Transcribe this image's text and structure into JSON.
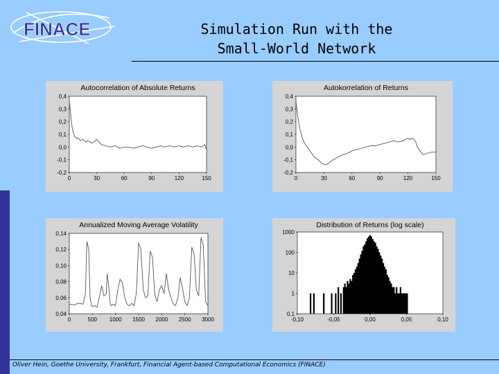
{
  "header": {
    "logo_text": "FINACE",
    "title_line1": "Simulation Run with the",
    "title_line2": "Small-World Network"
  },
  "footer": {
    "text": "Oliver Hein, Goethe University, Frankfurt, Financial Agent-based Computational Economics (FINACE)"
  },
  "colors": {
    "background": "#99ccff",
    "accent_bar": "#333399",
    "panel": "#d4d4d4",
    "plot_area": "#ffffff",
    "line": "#555555"
  },
  "chart_data": [
    {
      "type": "line",
      "title": "Autocorrelation of Absolute Returns",
      "xlim": [
        0,
        150
      ],
      "ylim": [
        -0.2,
        0.4
      ],
      "xticks": [
        "0",
        "30",
        "60",
        "90",
        "120",
        "150"
      ],
      "yticks": [
        "0,4",
        "0,3",
        "0,2",
        "0,1",
        "0,0",
        "-0,1",
        "-0,2"
      ],
      "x": [
        0,
        1,
        2,
        3,
        4,
        5,
        6,
        8,
        10,
        12,
        15,
        18,
        20,
        25,
        30,
        35,
        40,
        45,
        50,
        55,
        60,
        65,
        70,
        75,
        80,
        85,
        90,
        95,
        100,
        105,
        110,
        115,
        120,
        125,
        130,
        135,
        140,
        145,
        148,
        150
      ],
      "y": [
        0.36,
        0.3,
        0.22,
        0.16,
        0.12,
        0.1,
        0.08,
        0.07,
        0.07,
        0.05,
        0.06,
        0.04,
        0.05,
        0.03,
        0.06,
        0.02,
        0.01,
        0.0,
        0.01,
        -0.01,
        0.0,
        0.0,
        -0.01,
        0.0,
        0.01,
        0.0,
        -0.01,
        0.0,
        0.01,
        0.0,
        0.01,
        0.0,
        0.01,
        0.0,
        0.01,
        0.0,
        0.01,
        0.0,
        0.02,
        -0.02
      ]
    },
    {
      "type": "line",
      "title": "Autokorrelation of Returns",
      "xlim": [
        0,
        150
      ],
      "ylim": [
        -0.2,
        0.4
      ],
      "xticks": [
        "0",
        "30",
        "60",
        "90",
        "120",
        "150"
      ],
      "yticks": [
        "0,4",
        "0,3",
        "0,2",
        "0,1",
        "0,0",
        "-0,1",
        "-0,2"
      ],
      "x": [
        0,
        1,
        2,
        3,
        4,
        5,
        6,
        8,
        10,
        12,
        15,
        18,
        20,
        24,
        28,
        32,
        36,
        40,
        45,
        50,
        55,
        60,
        65,
        70,
        75,
        80,
        85,
        90,
        95,
        100,
        105,
        110,
        115,
        120,
        122,
        125,
        128,
        130,
        133,
        136,
        140,
        145,
        150
      ],
      "y": [
        0.36,
        0.3,
        0.24,
        0.19,
        0.15,
        0.12,
        0.09,
        0.05,
        0.02,
        0.0,
        -0.03,
        -0.06,
        -0.08,
        -0.1,
        -0.13,
        -0.14,
        -0.12,
        -0.1,
        -0.08,
        -0.06,
        -0.05,
        -0.03,
        -0.02,
        -0.01,
        0.0,
        0.01,
        0.01,
        0.02,
        0.03,
        0.04,
        0.05,
        0.04,
        0.05,
        0.07,
        0.06,
        0.07,
        0.05,
        0.0,
        -0.03,
        -0.06,
        -0.05,
        -0.04,
        -0.04
      ]
    },
    {
      "type": "line",
      "title": "Annualized Moving Average Volatility",
      "xlim": [
        0,
        3000
      ],
      "ylim": [
        0.04,
        0.14
      ],
      "xticks": [
        "0",
        "500",
        "1000",
        "1500",
        "2000",
        "2500",
        "3000"
      ],
      "yticks": [
        "0,14",
        "0,12",
        "0,10",
        "0,08",
        "0,06",
        "0,04"
      ],
      "x": [
        0,
        100,
        200,
        300,
        350,
        380,
        400,
        420,
        450,
        480,
        500,
        550,
        600,
        650,
        700,
        750,
        800,
        820,
        850,
        880,
        900,
        950,
        1000,
        1050,
        1100,
        1150,
        1200,
        1250,
        1300,
        1350,
        1400,
        1450,
        1500,
        1550,
        1600,
        1650,
        1700,
        1750,
        1800,
        1850,
        1900,
        1950,
        2000,
        2050,
        2100,
        2150,
        2200,
        2250,
        2300,
        2350,
        2400,
        2450,
        2500,
        2550,
        2600,
        2650,
        2700,
        2750,
        2800,
        2850,
        2900,
        2950,
        3000
      ],
      "y": [
        0.052,
        0.051,
        0.053,
        0.052,
        0.065,
        0.13,
        0.125,
        0.12,
        0.06,
        0.05,
        0.049,
        0.05,
        0.048,
        0.06,
        0.075,
        0.062,
        0.065,
        0.09,
        0.075,
        0.055,
        0.05,
        0.052,
        0.05,
        0.07,
        0.083,
        0.078,
        0.06,
        0.052,
        0.05,
        0.053,
        0.05,
        0.065,
        0.128,
        0.12,
        0.07,
        0.06,
        0.062,
        0.118,
        0.11,
        0.064,
        0.055,
        0.07,
        0.075,
        0.065,
        0.09,
        0.07,
        0.06,
        0.052,
        0.05,
        0.06,
        0.085,
        0.072,
        0.055,
        0.05,
        0.06,
        0.123,
        0.115,
        0.07,
        0.062,
        0.135,
        0.125,
        0.055,
        0.05
      ]
    },
    {
      "type": "bar",
      "title": "Distribution of Returns (log scale)",
      "yscale": "log",
      "xlim": [
        -0.11,
        0.11
      ],
      "ylim": [
        0.1,
        1000
      ],
      "xticks": [
        "-0,10",
        "-0,05",
        "0,00",
        "0,05",
        "0,10"
      ],
      "yticks": [
        "1000",
        "100",
        "10",
        "1",
        "0,1"
      ],
      "x": [
        -0.09,
        -0.085,
        -0.07,
        -0.058,
        -0.052,
        -0.048,
        -0.044,
        -0.04,
        -0.038,
        -0.036,
        -0.034,
        -0.032,
        -0.03,
        -0.028,
        -0.026,
        -0.024,
        -0.022,
        -0.02,
        -0.018,
        -0.016,
        -0.014,
        -0.012,
        -0.01,
        -0.008,
        -0.006,
        -0.004,
        -0.002,
        0.0,
        0.002,
        0.004,
        0.006,
        0.008,
        0.01,
        0.012,
        0.014,
        0.016,
        0.018,
        0.02,
        0.022,
        0.024,
        0.026,
        0.028,
        0.03,
        0.032,
        0.034,
        0.036,
        0.038,
        0.04,
        0.042,
        0.044,
        0.046,
        0.048,
        0.05,
        0.052,
        0.054,
        0.056
      ],
      "values": [
        1,
        1,
        1,
        1,
        1,
        2,
        1,
        2,
        3,
        2,
        4,
        3,
        5,
        4,
        8,
        10,
        15,
        20,
        30,
        50,
        80,
        120,
        200,
        250,
        350,
        500,
        600,
        700,
        600,
        450,
        350,
        300,
        200,
        150,
        100,
        70,
        50,
        30,
        20,
        15,
        8,
        6,
        4,
        3,
        2,
        2,
        1,
        2,
        1,
        1,
        2,
        1,
        1,
        1,
        1,
        1
      ]
    }
  ]
}
